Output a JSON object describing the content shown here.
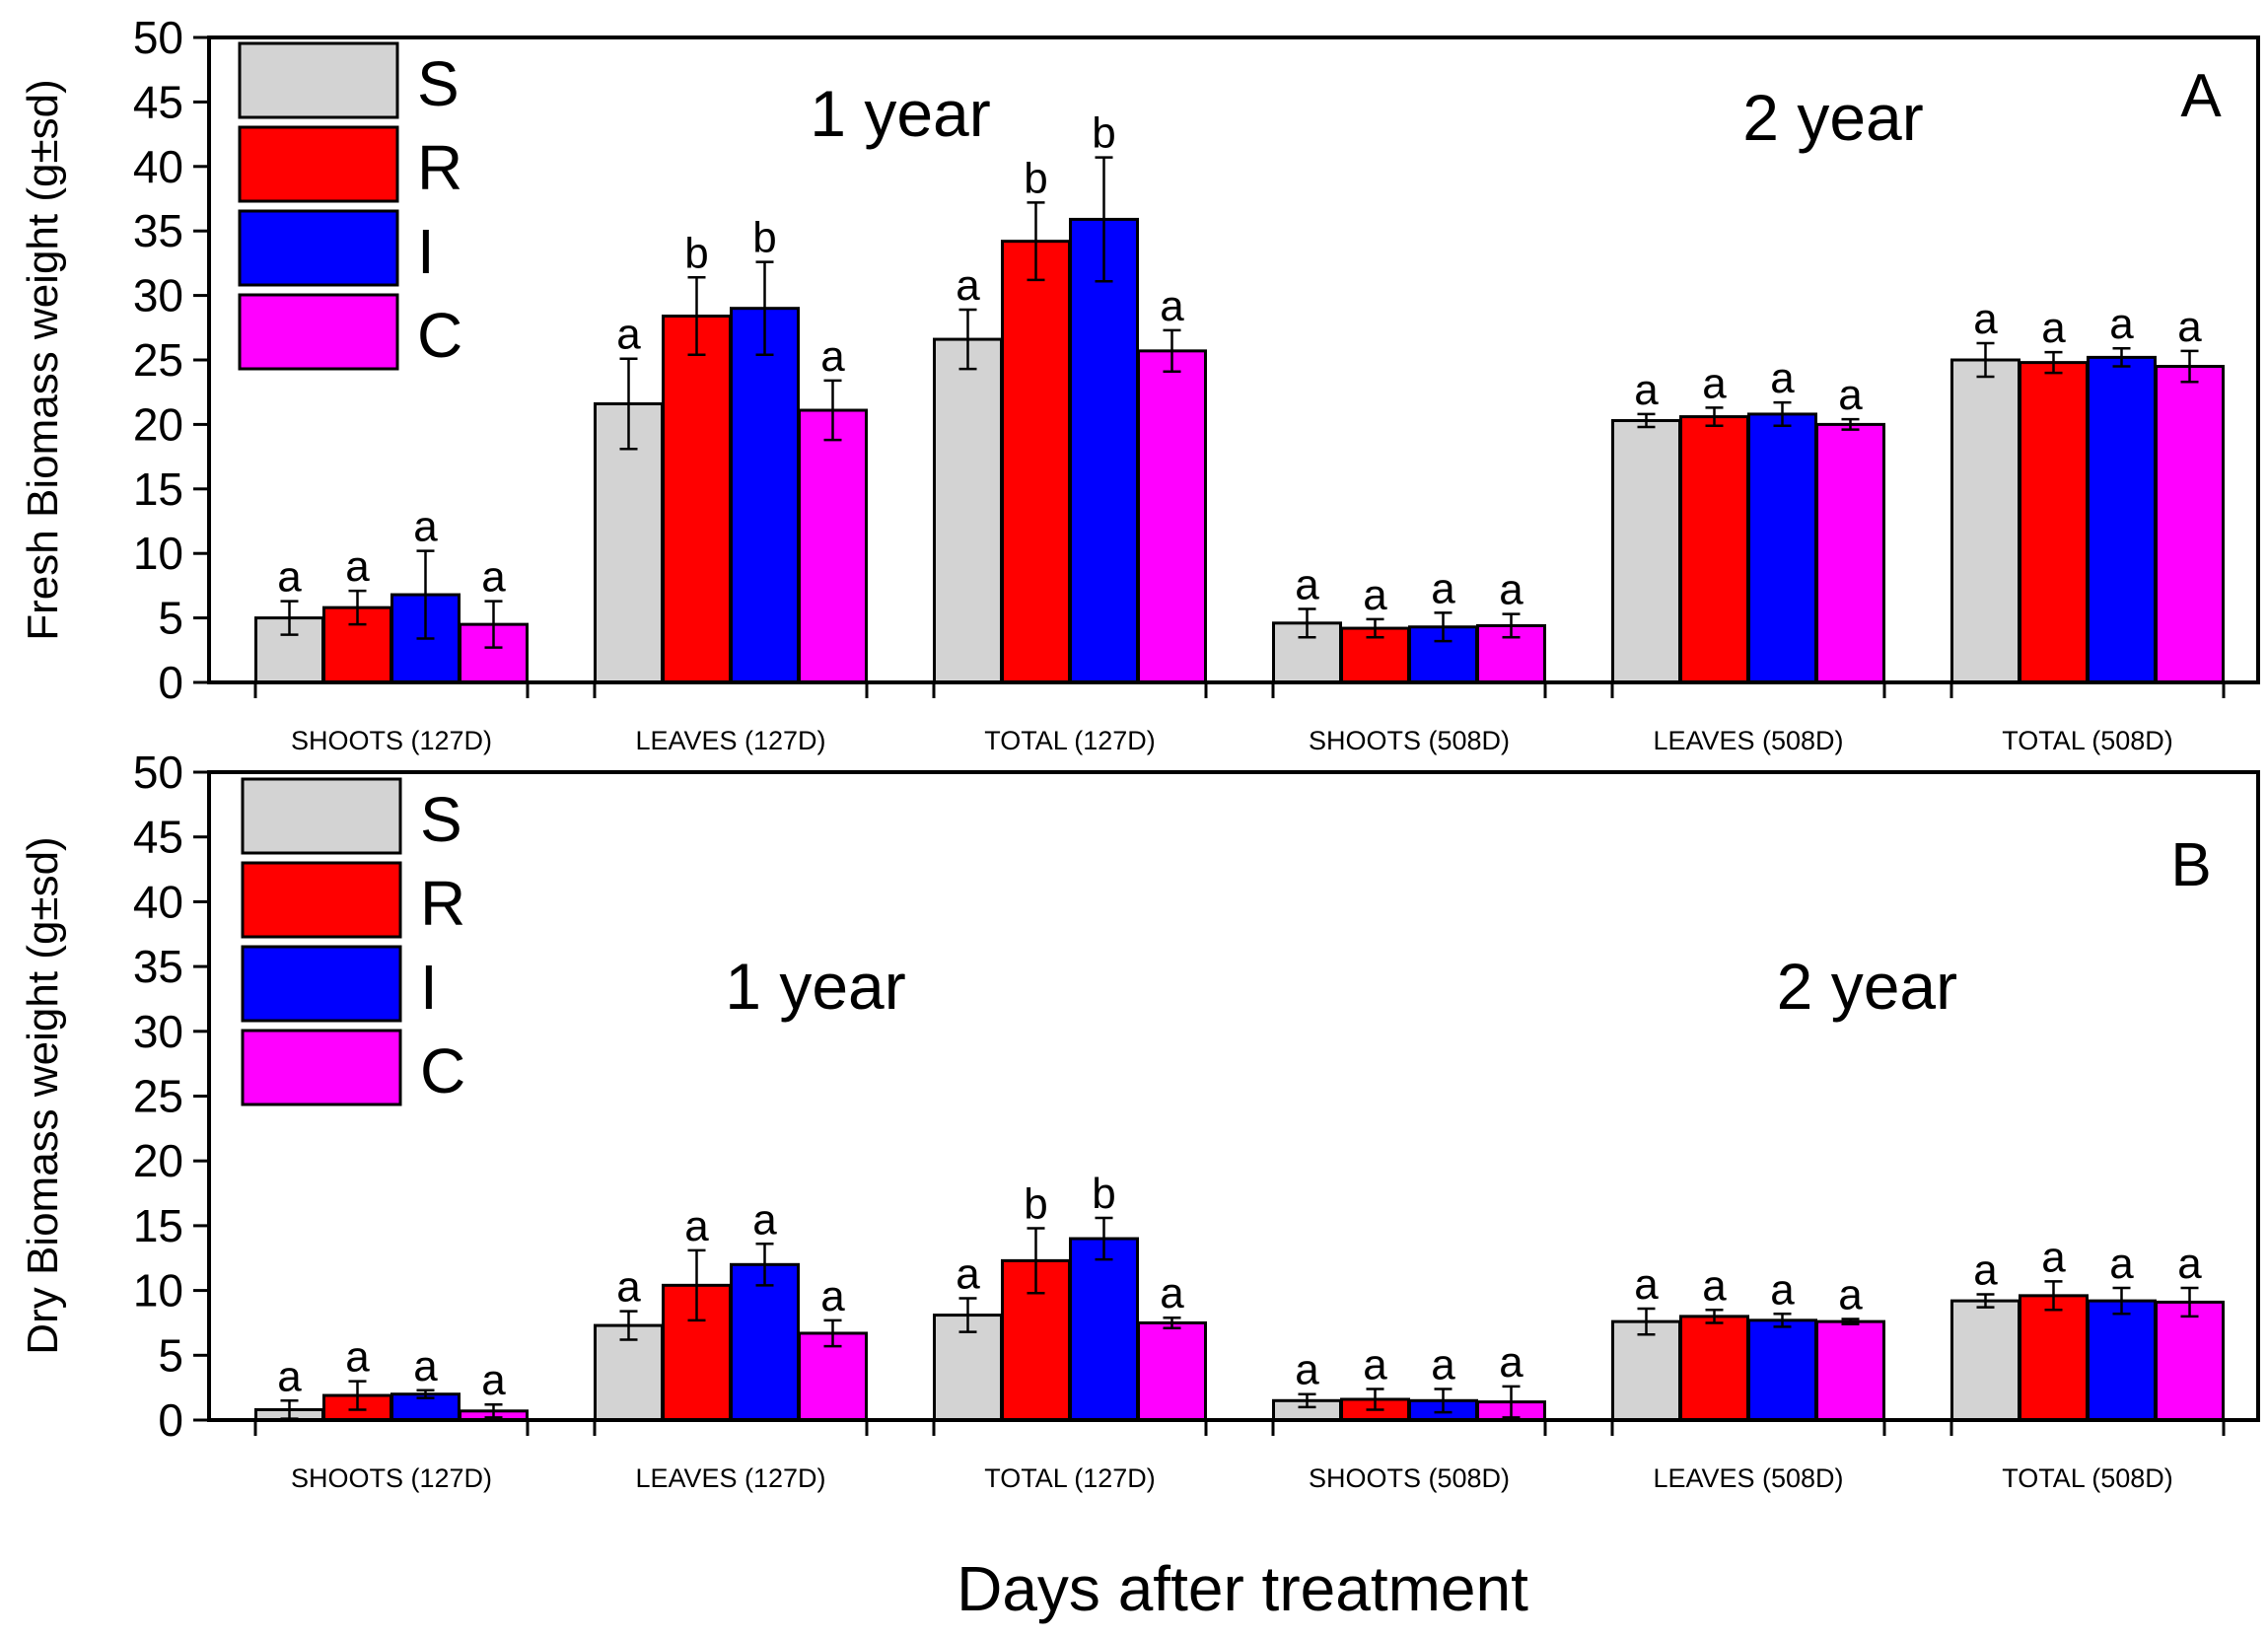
{
  "figure": {
    "xlabel": "Days after treatment"
  },
  "legend": [
    {
      "key": "S",
      "color": "#d3d3d3"
    },
    {
      "key": "R",
      "color": "#ff0000"
    },
    {
      "key": "I",
      "color": "#0000ff"
    },
    {
      "key": "C",
      "color": "#ff00ff"
    }
  ],
  "chart_data": [
    {
      "type": "bar",
      "panel_label": "A",
      "ylabel": "Fresh Biomass weight (g±sd)",
      "ylim": [
        0,
        50
      ],
      "yticks": [
        0,
        5,
        10,
        15,
        20,
        25,
        30,
        35,
        40,
        45,
        50
      ],
      "categories": [
        "SHOOTS (127D)",
        "LEAVES (127D)",
        "TOTAL (127D)",
        "SHOOTS (508D)",
        "LEAVES (508D)",
        "TOTAL (508D)"
      ],
      "annotations": [
        {
          "text": "1 year",
          "x_category": 1.5,
          "y": 44
        },
        {
          "text": "2 year",
          "x_category": 4.25,
          "y": 43.5
        }
      ],
      "series": [
        {
          "name": "S",
          "values": [
            5.0,
            21.6,
            26.6,
            4.6,
            20.3,
            25.0
          ],
          "errors": [
            1.3,
            3.5,
            2.3,
            1.1,
            0.5,
            1.3
          ],
          "letters": [
            "a",
            "a",
            "a",
            "a",
            "a",
            "a"
          ]
        },
        {
          "name": "R",
          "values": [
            5.8,
            28.4,
            34.2,
            4.2,
            20.6,
            24.8
          ],
          "errors": [
            1.3,
            3.0,
            3.0,
            0.7,
            0.7,
            0.8
          ],
          "letters": [
            "a",
            "b",
            "b",
            "a",
            "a",
            "a"
          ]
        },
        {
          "name": "I",
          "values": [
            6.8,
            29.0,
            35.9,
            4.3,
            20.8,
            25.2
          ],
          "errors": [
            3.4,
            3.6,
            4.8,
            1.1,
            0.9,
            0.7
          ],
          "letters": [
            "a",
            "b",
            "b",
            "a",
            "a",
            "a"
          ]
        },
        {
          "name": "C",
          "values": [
            4.5,
            21.1,
            25.7,
            4.4,
            20.0,
            24.5
          ],
          "errors": [
            1.8,
            2.3,
            1.6,
            0.9,
            0.4,
            1.2
          ],
          "letters": [
            "a",
            "a",
            "a",
            "a",
            "a",
            "a"
          ]
        }
      ]
    },
    {
      "type": "bar",
      "panel_label": "B",
      "ylabel": "Dry Biomass weight (g±sd)",
      "ylim": [
        0,
        50
      ],
      "yticks": [
        0,
        5,
        10,
        15,
        20,
        25,
        30,
        35,
        40,
        45,
        50
      ],
      "categories": [
        "SHOOTS (127D)",
        "LEAVES (127D)",
        "TOTAL (127D)",
        "SHOOTS (508D)",
        "LEAVES (508D)",
        "TOTAL (508D)"
      ],
      "annotations": [
        {
          "text": "1 year",
          "x_category": 1.25,
          "y": 33.5
        },
        {
          "text": "2 year",
          "x_category": 4.35,
          "y": 33.5
        }
      ],
      "series": [
        {
          "name": "S",
          "values": [
            0.8,
            7.3,
            8.1,
            1.5,
            7.6,
            9.2
          ],
          "errors": [
            0.7,
            1.1,
            1.3,
            0.5,
            1.0,
            0.5
          ],
          "letters": [
            "a",
            "a",
            "a",
            "a",
            "a",
            "a"
          ]
        },
        {
          "name": "R",
          "values": [
            1.9,
            10.4,
            12.3,
            1.6,
            8.0,
            9.6
          ],
          "errors": [
            1.1,
            2.7,
            2.5,
            0.8,
            0.5,
            1.1
          ],
          "letters": [
            "a",
            "a",
            "b",
            "a",
            "a",
            "a"
          ]
        },
        {
          "name": "I",
          "values": [
            2.0,
            12.0,
            14.0,
            1.5,
            7.7,
            9.2
          ],
          "errors": [
            0.3,
            1.6,
            1.6,
            0.9,
            0.5,
            1.0
          ],
          "letters": [
            "a",
            "a",
            "b",
            "a",
            "a",
            "a"
          ]
        },
        {
          "name": "C",
          "values": [
            0.7,
            6.7,
            7.5,
            1.4,
            7.6,
            9.1
          ],
          "errors": [
            0.5,
            1.0,
            0.4,
            1.2,
            0.2,
            1.1
          ],
          "letters": [
            "a",
            "a",
            "a",
            "a",
            "a",
            "a"
          ]
        }
      ]
    }
  ]
}
